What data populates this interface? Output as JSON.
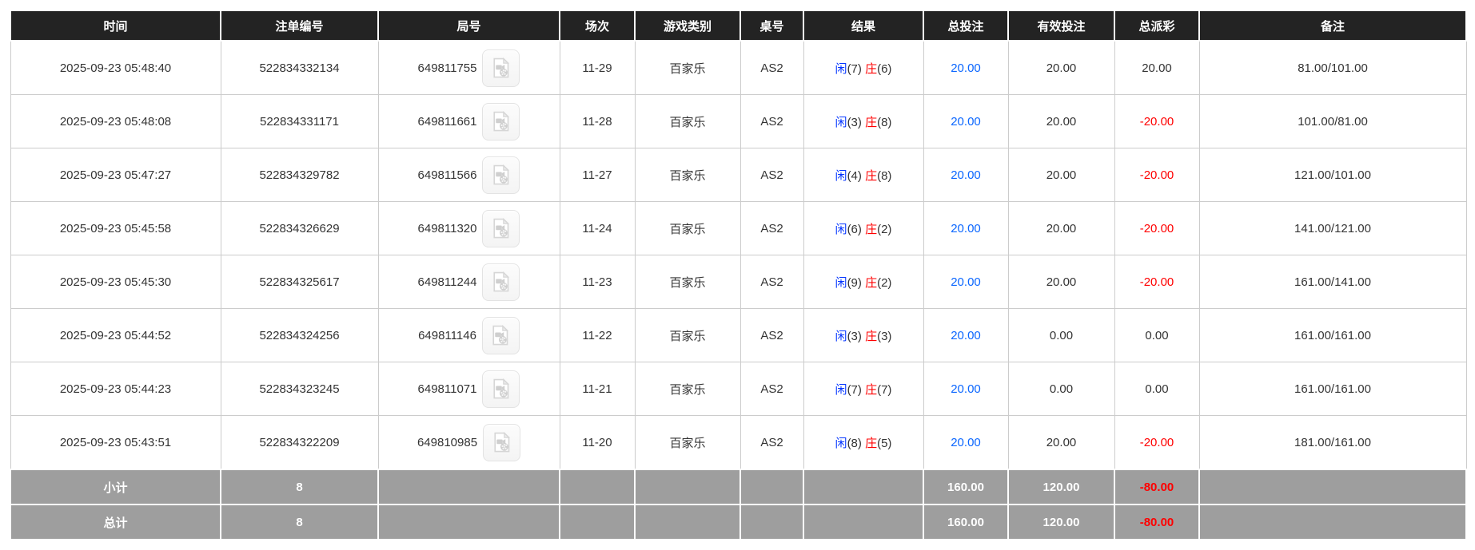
{
  "table": {
    "columns": [
      {
        "key": "time",
        "label": "时间"
      },
      {
        "key": "bet_id",
        "label": "注单编号"
      },
      {
        "key": "round_id",
        "label": "局号"
      },
      {
        "key": "session",
        "label": "场次"
      },
      {
        "key": "game_type",
        "label": "游戏类别"
      },
      {
        "key": "table_no",
        "label": "桌号"
      },
      {
        "key": "result",
        "label": "结果"
      },
      {
        "key": "total_bet",
        "label": "总投注"
      },
      {
        "key": "valid_bet",
        "label": "有效投注"
      },
      {
        "key": "total_payout",
        "label": "总派彩"
      },
      {
        "key": "remark",
        "label": "备注"
      }
    ],
    "rows": [
      {
        "time": "2025-09-23 05:48:40",
        "bet_id": "522834332134",
        "round_id": "649811755",
        "session": "11-29",
        "game_type": "百家乐",
        "table_no": "AS2",
        "player_label": "闲",
        "player_score": "(7)",
        "banker_label": "庄",
        "banker_score": "(6)",
        "total_bet": "20.00",
        "valid_bet": "20.00",
        "total_payout": "20.00",
        "payout_negative": false,
        "remark": "81.00/101.00"
      },
      {
        "time": "2025-09-23 05:48:08",
        "bet_id": "522834331171",
        "round_id": "649811661",
        "session": "11-28",
        "game_type": "百家乐",
        "table_no": "AS2",
        "player_label": "闲",
        "player_score": "(3)",
        "banker_label": "庄",
        "banker_score": "(8)",
        "total_bet": "20.00",
        "valid_bet": "20.00",
        "total_payout": "-20.00",
        "payout_negative": true,
        "remark": "101.00/81.00"
      },
      {
        "time": "2025-09-23 05:47:27",
        "bet_id": "522834329782",
        "round_id": "649811566",
        "session": "11-27",
        "game_type": "百家乐",
        "table_no": "AS2",
        "player_label": "闲",
        "player_score": "(4)",
        "banker_label": "庄",
        "banker_score": "(8)",
        "total_bet": "20.00",
        "valid_bet": "20.00",
        "total_payout": "-20.00",
        "payout_negative": true,
        "remark": "121.00/101.00"
      },
      {
        "time": "2025-09-23 05:45:58",
        "bet_id": "522834326629",
        "round_id": "649811320",
        "session": "11-24",
        "game_type": "百家乐",
        "table_no": "AS2",
        "player_label": "闲",
        "player_score": "(6)",
        "banker_label": "庄",
        "banker_score": "(2)",
        "total_bet": "20.00",
        "valid_bet": "20.00",
        "total_payout": "-20.00",
        "payout_negative": true,
        "remark": "141.00/121.00"
      },
      {
        "time": "2025-09-23 05:45:30",
        "bet_id": "522834325617",
        "round_id": "649811244",
        "session": "11-23",
        "game_type": "百家乐",
        "table_no": "AS2",
        "player_label": "闲",
        "player_score": "(9)",
        "banker_label": "庄",
        "banker_score": "(2)",
        "total_bet": "20.00",
        "valid_bet": "20.00",
        "total_payout": "-20.00",
        "payout_negative": true,
        "remark": "161.00/141.00"
      },
      {
        "time": "2025-09-23 05:44:52",
        "bet_id": "522834324256",
        "round_id": "649811146",
        "session": "11-22",
        "game_type": "百家乐",
        "table_no": "AS2",
        "player_label": "闲",
        "player_score": "(3)",
        "banker_label": "庄",
        "banker_score": "(3)",
        "total_bet": "20.00",
        "valid_bet": "0.00",
        "total_payout": "0.00",
        "payout_negative": false,
        "remark": "161.00/161.00"
      },
      {
        "time": "2025-09-23 05:44:23",
        "bet_id": "522834323245",
        "round_id": "649811071",
        "session": "11-21",
        "game_type": "百家乐",
        "table_no": "AS2",
        "player_label": "闲",
        "player_score": "(7)",
        "banker_label": "庄",
        "banker_score": "(7)",
        "total_bet": "20.00",
        "valid_bet": "0.00",
        "total_payout": "0.00",
        "payout_negative": false,
        "remark": "161.00/161.00"
      },
      {
        "time": "2025-09-23 05:43:51",
        "bet_id": "522834322209",
        "round_id": "649810985",
        "session": "11-20",
        "game_type": "百家乐",
        "table_no": "AS2",
        "player_label": "闲",
        "player_score": "(8)",
        "banker_label": "庄",
        "banker_score": "(5)",
        "total_bet": "20.00",
        "valid_bet": "20.00",
        "total_payout": "-20.00",
        "payout_negative": true,
        "remark": "181.00/161.00"
      }
    ],
    "footer": [
      {
        "label": "小计",
        "count": "8",
        "total_bet": "160.00",
        "valid_bet": "120.00",
        "total_payout": "-80.00",
        "payout_negative": true
      },
      {
        "label": "总计",
        "count": "8",
        "total_bet": "160.00",
        "valid_bet": "120.00",
        "total_payout": "-80.00",
        "payout_negative": true
      }
    ],
    "icons": {
      "round_video": "video-file-icon"
    },
    "colors": {
      "header_bg": "#232323",
      "header_text": "#ffffff",
      "footer_bg": "#9e9e9e",
      "player_blue": "#0536ff",
      "banker_red": "#ff0000",
      "bet_link_blue": "#0a66ff",
      "negative_red": "#ff0000",
      "grid_border": "#cccccc"
    }
  }
}
